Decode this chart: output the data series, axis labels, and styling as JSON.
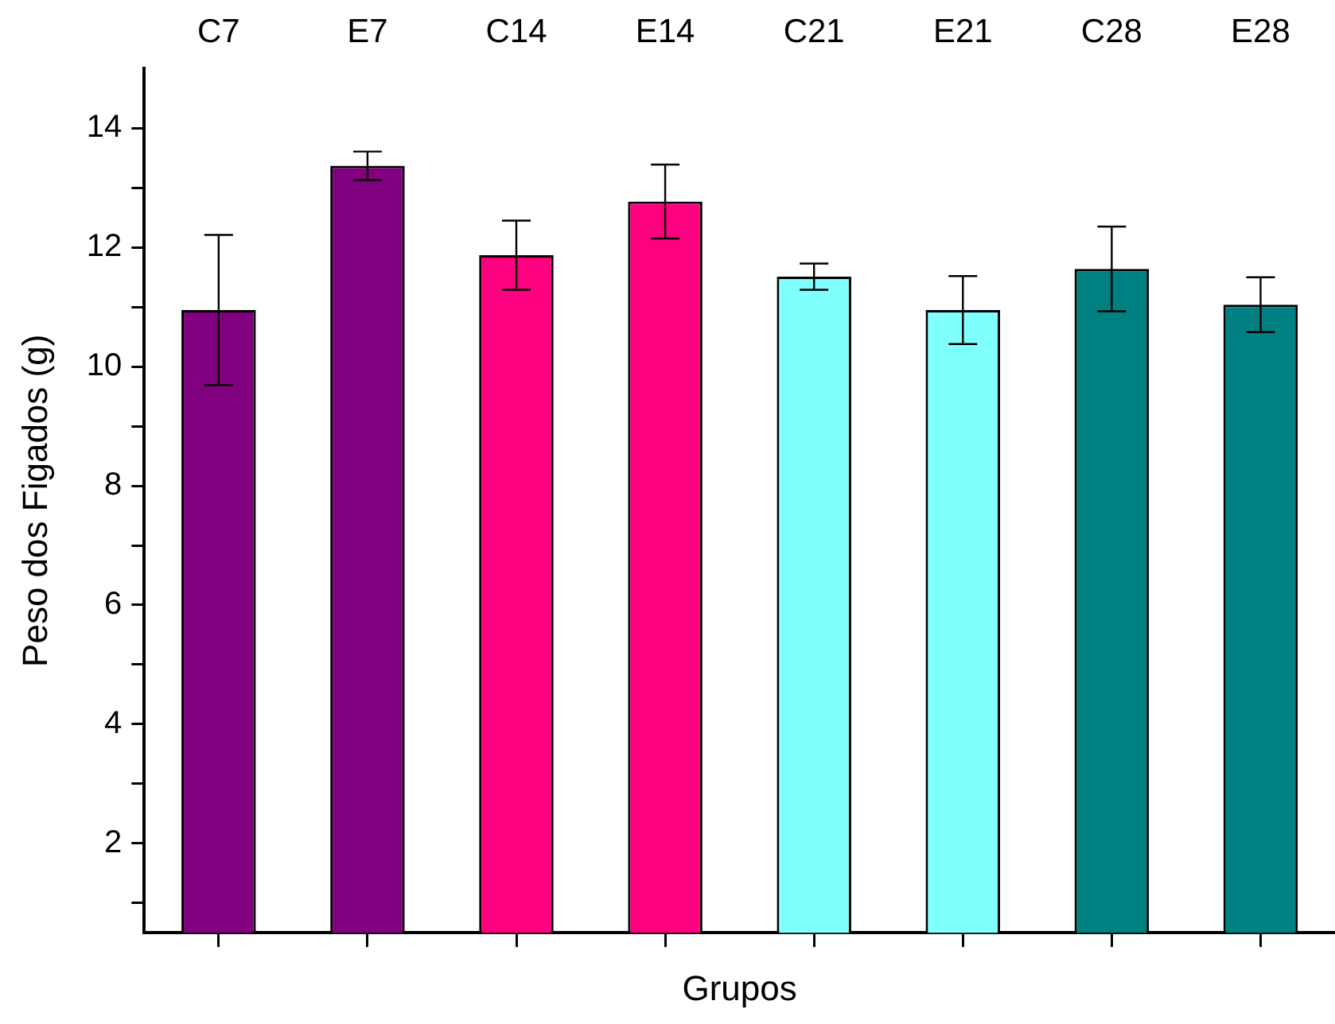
{
  "chart_data": {
    "type": "bar",
    "xlabel": "Grupos",
    "ylabel": "Peso dos Figados (g)",
    "categories": [
      "C7",
      "E7",
      "C14",
      "E14",
      "C21",
      "E21",
      "C28",
      "E28"
    ],
    "values": [
      10.95,
      13.37,
      11.87,
      12.77,
      11.51,
      10.95,
      11.64,
      11.04
    ],
    "errors": [
      1.26,
      0.24,
      0.58,
      0.62,
      0.22,
      0.57,
      0.71,
      0.46
    ],
    "colors": [
      "#800080",
      "#800080",
      "#ff0080",
      "#ff0080",
      "#80ffff",
      "#80ffff",
      "#008080",
      "#008080"
    ],
    "ylim": [
      0.5,
      15
    ],
    "yticks": [
      {
        "value": 1,
        "label": null
      },
      2,
      {
        "value": 3,
        "label": null
      },
      4,
      {
        "value": 5,
        "label": null
      },
      6,
      {
        "value": 7,
        "label": null
      },
      8,
      {
        "value": 9,
        "label": null
      },
      10,
      {
        "value": 11,
        "label": null
      },
      12,
      {
        "value": 13,
        "label": null
      },
      14
    ],
    "grid": false,
    "legend": false
  }
}
